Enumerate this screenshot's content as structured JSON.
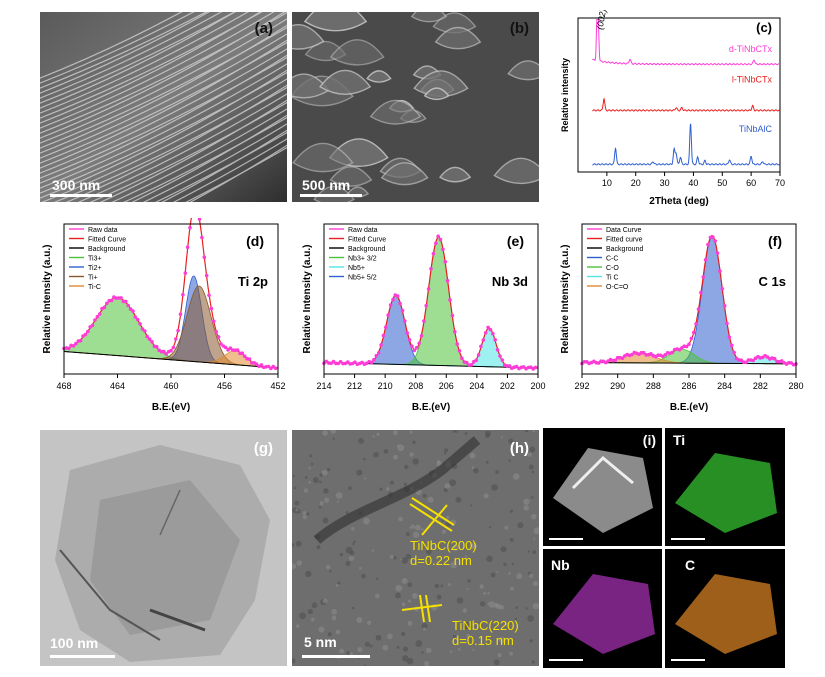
{
  "panels": {
    "a": {
      "tag": "(a)",
      "scalebar": "300 nm"
    },
    "b": {
      "tag": "(b)",
      "scalebar": "500 nm"
    },
    "g": {
      "tag": "(g)",
      "scalebar": "100 nm"
    },
    "h": {
      "tag": "(h)",
      "scalebar": "5 nm",
      "ann1_l1": "TiNbC(200)",
      "ann1_l2": "d=0.22 nm",
      "ann2_l1": "TiNbC(220)",
      "ann2_l2": "d=0.15 nm"
    },
    "i": {
      "tag": "(i)",
      "ti": "Ti",
      "nb": "Nb",
      "c": "C"
    }
  },
  "colors": {
    "magenta": "#ff3dd6",
    "red": "#e82020",
    "blue": "#2f5fd0",
    "green": "#4cc23a",
    "cyan": "#4fe6e6",
    "orange": "#e08a30",
    "brown": "#8a5a2b",
    "yellow": "#f6e000"
  },
  "chart_data": [
    {
      "id": "c",
      "type": "line",
      "tag": "(c)",
      "xlabel": "2Theta (deg)",
      "ylabel": "Relative intensity",
      "xlim": [
        0,
        70
      ],
      "xticks": [
        10,
        20,
        30,
        40,
        50,
        60,
        70
      ],
      "peak_label": "(002)",
      "series": [
        {
          "name": "d-TiNbCTx",
          "color": "#ff3dd6",
          "offset": 0.7,
          "peaks": [
            [
              6.8,
              0.95
            ],
            [
              18,
              0.05
            ],
            [
              61,
              0.05
            ]
          ]
        },
        {
          "name": "l-TiNbCTx",
          "color": "#e82020",
          "offset": 0.4,
          "peaks": [
            [
              9,
              0.13
            ],
            [
              34,
              0.03
            ],
            [
              36,
              0.03
            ],
            [
              60.5,
              0.05
            ]
          ]
        },
        {
          "name": "TiNbAlC",
          "color": "#2f5fd0",
          "offset": 0.05,
          "peaks": [
            [
              13,
              0.18
            ],
            [
              26,
              0.03
            ],
            [
              33.3,
              0.16
            ],
            [
              34,
              0.12
            ],
            [
              35.5,
              0.08
            ],
            [
              39,
              0.45
            ],
            [
              41.5,
              0.08
            ],
            [
              44,
              0.04
            ],
            [
              52.5,
              0.05
            ],
            [
              60,
              0.09
            ],
            [
              64,
              0.03
            ]
          ]
        }
      ]
    },
    {
      "id": "d",
      "type": "area",
      "tag": "(d)",
      "element": "Ti 2p",
      "xlabel": "B.E.(eV)",
      "ylabel": "Relative Intensity (a.u.)",
      "xlim": [
        468,
        452
      ],
      "xticks": [
        468,
        464,
        460,
        456,
        452
      ],
      "legend": [
        "Raw data",
        "Fitted Curve",
        "Background",
        "Ti3+",
        "Ti2+",
        "Ti+",
        "Ti-C"
      ],
      "background": [
        [
          468,
          0.12
        ],
        [
          452,
          0.0
        ]
      ],
      "components": [
        {
          "name": "Ti3+",
          "color": "#4cc23a",
          "center": 464.0,
          "height": 0.42,
          "width": 1.6
        },
        {
          "name": "Ti2+",
          "color": "#2f5fd0",
          "center": 458.3,
          "height": 0.62,
          "width": 0.6
        },
        {
          "name": "Ti+",
          "color": "#8a5a2b",
          "center": 457.9,
          "height": 0.55,
          "width": 0.9
        },
        {
          "name": "Ti-C",
          "color": "#e08a30",
          "center": 455.2,
          "height": 0.1,
          "width": 0.8
        }
      ]
    },
    {
      "id": "e",
      "type": "area",
      "tag": "(e)",
      "element": "Nb 3d",
      "xlabel": "B.E.(eV)",
      "ylabel": "Relative Intensity (a.u.)",
      "xlim": [
        214,
        200
      ],
      "xticks": [
        214,
        212,
        210,
        208,
        206,
        204,
        202,
        200
      ],
      "legend": [
        "Raw data",
        "Fitted Curve",
        "Background",
        "Nb3+ 3/2",
        "Nb5+",
        "Nb5+ 5/2"
      ],
      "background": [
        [
          214,
          0.04
        ],
        [
          200,
          0.0
        ]
      ],
      "components": [
        {
          "name": "Nb5+ 5/2",
          "color": "#2f5fd0",
          "center": 209.3,
          "height": 0.5,
          "width": 0.6
        },
        {
          "name": "Nb3+ 3/2",
          "color": "#4cc23a",
          "center": 206.5,
          "height": 0.93,
          "width": 0.65
        },
        {
          "name": "Nb5+",
          "color": "#4fe6e6",
          "center": 203.2,
          "height": 0.28,
          "width": 0.45
        }
      ]
    },
    {
      "id": "f",
      "type": "area",
      "tag": "(f)",
      "element": "C 1s",
      "xlabel": "B.E.(eV)",
      "ylabel": "Relative Intensity (a.u.)",
      "xlim": [
        292,
        280
      ],
      "xticks": [
        292,
        290,
        288,
        286,
        284,
        282,
        280
      ],
      "legend": [
        "Data Curve",
        "Fitted curve",
        "Background",
        "C-C",
        "C-O",
        "Ti C",
        "O-C=O"
      ],
      "background": [
        [
          292,
          0.04
        ],
        [
          280,
          0.03
        ]
      ],
      "components": [
        {
          "name": "C-C",
          "color": "#2f5fd0",
          "center": 284.7,
          "height": 0.92,
          "width": 0.55
        },
        {
          "name": "C-O",
          "color": "#4cc23a",
          "center": 286.4,
          "height": 0.1,
          "width": 0.7
        },
        {
          "name": "Ti C",
          "color": "#4fe6e6",
          "center": 281.8,
          "height": 0.05,
          "width": 0.6
        },
        {
          "name": "O-C=O",
          "color": "#e08a30",
          "center": 288.8,
          "height": 0.07,
          "width": 0.9
        }
      ]
    }
  ]
}
